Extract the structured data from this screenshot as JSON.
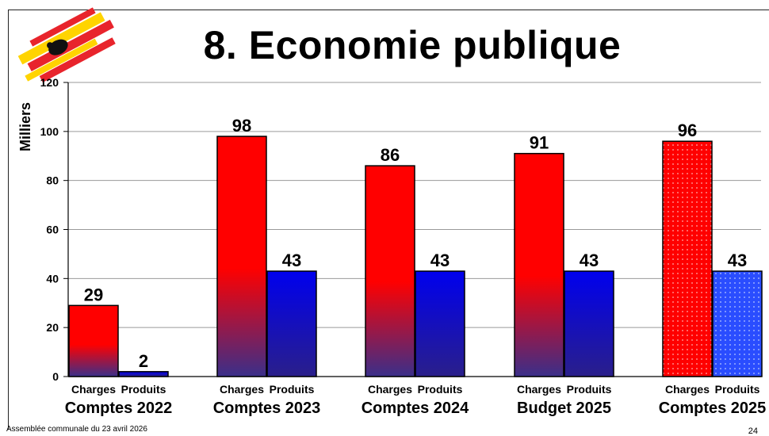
{
  "title": "8. Economie publique",
  "footer": "Assemblée communale du 23 avril 2026",
  "page_number": "24",
  "colors": {
    "charges": "#ff0000",
    "produits": "#0000ee",
    "gradient_bottom": "#3a2f8a"
  },
  "chart_data": {
    "type": "bar",
    "ylabel": "Milliers",
    "ylim": [
      0,
      120
    ],
    "yticks": [
      0,
      20,
      40,
      60,
      80,
      100,
      120
    ],
    "groups": [
      {
        "label": "Comptes 2022",
        "charges_label": "Charges",
        "produits_label": "Produits",
        "charges": 29,
        "produits": 2,
        "pattern": false
      },
      {
        "label": "Comptes 2023",
        "charges_label": "Charges",
        "produits_label": "Produits",
        "charges": 98,
        "produits": 43,
        "pattern": false
      },
      {
        "label": "Comptes 2024",
        "charges_label": "Charges",
        "produits_label": "Produits",
        "charges": 86,
        "produits": 43,
        "pattern": false
      },
      {
        "label": "Budget 2025",
        "charges_label": "Charges",
        "produits_label": "Produits",
        "charges": 91,
        "produits": 43,
        "pattern": false
      },
      {
        "label": "Comptes 2025",
        "charges_label": "Charges",
        "produits_label": "Produits",
        "charges": 96,
        "produits": 43,
        "pattern": true
      }
    ]
  }
}
